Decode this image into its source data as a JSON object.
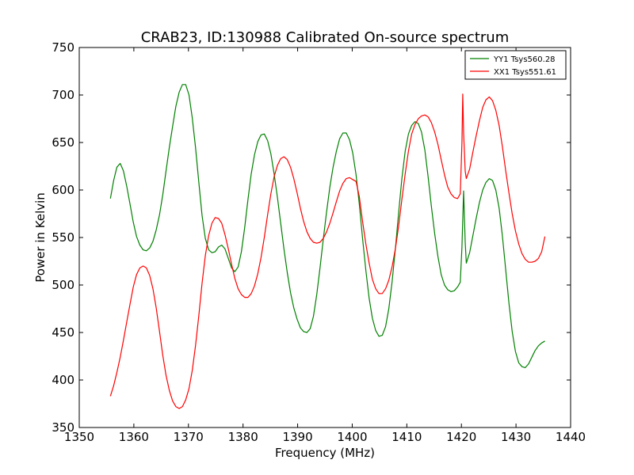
{
  "chart_data": {
    "type": "line",
    "title": "CRAB23, ID:130988 Calibrated On-source spectrum",
    "xlabel": "Frequency (MHz)",
    "ylabel": "Power in Kelvin",
    "xlim": [
      1350,
      1440
    ],
    "ylim": [
      350,
      750
    ],
    "xticks": [
      "1350",
      "1360",
      "1370",
      "1380",
      "1390",
      "1400",
      "1410",
      "1420",
      "1430",
      "1440"
    ],
    "yticks": [
      "350",
      "400",
      "450",
      "500",
      "550",
      "600",
      "650",
      "700",
      "750"
    ],
    "grid": false,
    "legend_position": "top-right",
    "series": [
      {
        "name": "YY1 Tsys560.28",
        "color": "#008000",
        "points": [
          [
            1355.7,
            591
          ],
          [
            1356.3,
            610
          ],
          [
            1356.9,
            624
          ],
          [
            1357.5,
            628
          ],
          [
            1358.1,
            620
          ],
          [
            1358.7,
            604
          ],
          [
            1359.3,
            585
          ],
          [
            1359.9,
            566
          ],
          [
            1360.5,
            551
          ],
          [
            1361.1,
            542
          ],
          [
            1361.7,
            537
          ],
          [
            1362.3,
            536
          ],
          [
            1362.9,
            539
          ],
          [
            1363.5,
            546
          ],
          [
            1364.1,
            558
          ],
          [
            1364.7,
            574
          ],
          [
            1365.3,
            595
          ],
          [
            1365.9,
            620
          ],
          [
            1366.5,
            645
          ],
          [
            1367.1,
            667
          ],
          [
            1367.7,
            688
          ],
          [
            1368.3,
            703
          ],
          [
            1368.9,
            711
          ],
          [
            1369.5,
            711
          ],
          [
            1370.1,
            700
          ],
          [
            1370.7,
            676
          ],
          [
            1371.3,
            645
          ],
          [
            1371.9,
            608
          ],
          [
            1372.5,
            573
          ],
          [
            1373.1,
            549
          ],
          [
            1373.7,
            537
          ],
          [
            1374.3,
            534
          ],
          [
            1374.9,
            535
          ],
          [
            1375.5,
            540
          ],
          [
            1376.1,
            542
          ],
          [
            1376.7,
            538
          ],
          [
            1377.3,
            528
          ],
          [
            1377.9,
            518
          ],
          [
            1378.5,
            514
          ],
          [
            1379.1,
            519
          ],
          [
            1379.7,
            535
          ],
          [
            1380.3,
            560
          ],
          [
            1380.9,
            590
          ],
          [
            1381.5,
            617
          ],
          [
            1382.1,
            637
          ],
          [
            1382.7,
            651
          ],
          [
            1383.3,
            658
          ],
          [
            1383.9,
            659
          ],
          [
            1384.5,
            652
          ],
          [
            1385.1,
            638
          ],
          [
            1385.7,
            617
          ],
          [
            1386.3,
            592
          ],
          [
            1386.9,
            565
          ],
          [
            1387.5,
            538
          ],
          [
            1388.1,
            513
          ],
          [
            1388.7,
            492
          ],
          [
            1389.3,
            476
          ],
          [
            1389.9,
            464
          ],
          [
            1390.5,
            455
          ],
          [
            1391.1,
            451
          ],
          [
            1391.7,
            450
          ],
          [
            1392.3,
            454
          ],
          [
            1392.9,
            467
          ],
          [
            1393.5,
            490
          ],
          [
            1394.1,
            518
          ],
          [
            1394.7,
            548
          ],
          [
            1395.3,
            577
          ],
          [
            1395.9,
            603
          ],
          [
            1396.5,
            624
          ],
          [
            1397.1,
            641
          ],
          [
            1397.7,
            654
          ],
          [
            1398.3,
            660
          ],
          [
            1398.9,
            660
          ],
          [
            1399.5,
            653
          ],
          [
            1400.1,
            639
          ],
          [
            1400.7,
            616
          ],
          [
            1401.3,
            585
          ],
          [
            1401.9,
            549
          ],
          [
            1402.5,
            515
          ],
          [
            1403.1,
            486
          ],
          [
            1403.7,
            465
          ],
          [
            1404.3,
            452
          ],
          [
            1404.9,
            446
          ],
          [
            1405.5,
            447
          ],
          [
            1406.1,
            456
          ],
          [
            1406.7,
            475
          ],
          [
            1407.3,
            503
          ],
          [
            1407.9,
            538
          ],
          [
            1408.5,
            576
          ],
          [
            1409.1,
            612
          ],
          [
            1409.7,
            641
          ],
          [
            1410.3,
            659
          ],
          [
            1410.9,
            668
          ],
          [
            1411.5,
            672
          ],
          [
            1412.1,
            670
          ],
          [
            1412.7,
            661
          ],
          [
            1413.3,
            642
          ],
          [
            1413.9,
            614
          ],
          [
            1414.5,
            583
          ],
          [
            1415.1,
            554
          ],
          [
            1415.7,
            530
          ],
          [
            1416.3,
            511
          ],
          [
            1416.9,
            500
          ],
          [
            1417.5,
            495
          ],
          [
            1418.1,
            493
          ],
          [
            1418.7,
            494
          ],
          [
            1419.3,
            498
          ],
          [
            1419.8,
            503
          ],
          [
            1420.1,
            540
          ],
          [
            1420.4,
            599
          ],
          [
            1420.7,
            545
          ],
          [
            1420.9,
            523
          ],
          [
            1421.5,
            534
          ],
          [
            1422.1,
            552
          ],
          [
            1422.7,
            570
          ],
          [
            1423.3,
            587
          ],
          [
            1423.9,
            600
          ],
          [
            1424.5,
            608
          ],
          [
            1425.1,
            612
          ],
          [
            1425.7,
            610
          ],
          [
            1426.3,
            600
          ],
          [
            1426.9,
            581
          ],
          [
            1427.5,
            552
          ],
          [
            1428.1,
            517
          ],
          [
            1428.7,
            481
          ],
          [
            1429.3,
            451
          ],
          [
            1429.9,
            430
          ],
          [
            1430.5,
            418
          ],
          [
            1431.1,
            414
          ],
          [
            1431.7,
            413
          ],
          [
            1432.3,
            417
          ],
          [
            1432.9,
            424
          ],
          [
            1433.5,
            431
          ],
          [
            1434.1,
            436
          ],
          [
            1434.7,
            439
          ],
          [
            1435.3,
            441
          ]
        ]
      },
      {
        "name": "XX1 Tsys551.61",
        "color": "#ff0000",
        "points": [
          [
            1355.7,
            383
          ],
          [
            1356.3,
            394
          ],
          [
            1356.9,
            408
          ],
          [
            1357.5,
            424
          ],
          [
            1358.1,
            442
          ],
          [
            1358.7,
            461
          ],
          [
            1359.3,
            480
          ],
          [
            1359.9,
            498
          ],
          [
            1360.5,
            511
          ],
          [
            1361.1,
            518
          ],
          [
            1361.7,
            520
          ],
          [
            1362.3,
            518
          ],
          [
            1362.9,
            510
          ],
          [
            1363.5,
            496
          ],
          [
            1364.1,
            476
          ],
          [
            1364.7,
            451
          ],
          [
            1365.3,
            426
          ],
          [
            1365.9,
            405
          ],
          [
            1366.5,
            389
          ],
          [
            1367.1,
            378
          ],
          [
            1367.7,
            372
          ],
          [
            1368.3,
            370
          ],
          [
            1368.9,
            372
          ],
          [
            1369.5,
            379
          ],
          [
            1370.1,
            391
          ],
          [
            1370.7,
            410
          ],
          [
            1371.3,
            436
          ],
          [
            1371.9,
            468
          ],
          [
            1372.5,
            502
          ],
          [
            1373.1,
            531
          ],
          [
            1373.7,
            552
          ],
          [
            1374.3,
            565
          ],
          [
            1374.9,
            571
          ],
          [
            1375.5,
            570
          ],
          [
            1376.1,
            565
          ],
          [
            1376.7,
            553
          ],
          [
            1377.3,
            538
          ],
          [
            1377.9,
            522
          ],
          [
            1378.5,
            507
          ],
          [
            1379.1,
            496
          ],
          [
            1379.7,
            490
          ],
          [
            1380.3,
            487
          ],
          [
            1380.9,
            487
          ],
          [
            1381.5,
            491
          ],
          [
            1382.1,
            499
          ],
          [
            1382.7,
            512
          ],
          [
            1383.3,
            529
          ],
          [
            1383.9,
            550
          ],
          [
            1384.5,
            574
          ],
          [
            1385.1,
            596
          ],
          [
            1385.7,
            614
          ],
          [
            1386.3,
            626
          ],
          [
            1386.9,
            633
          ],
          [
            1387.5,
            635
          ],
          [
            1388.1,
            632
          ],
          [
            1388.7,
            624
          ],
          [
            1389.3,
            612
          ],
          [
            1389.9,
            597
          ],
          [
            1390.5,
            581
          ],
          [
            1391.1,
            567
          ],
          [
            1391.7,
            556
          ],
          [
            1392.3,
            549
          ],
          [
            1392.9,
            545
          ],
          [
            1393.5,
            544
          ],
          [
            1394.1,
            545
          ],
          [
            1394.7,
            549
          ],
          [
            1395.3,
            556
          ],
          [
            1395.9,
            565
          ],
          [
            1396.5,
            576
          ],
          [
            1397.1,
            588
          ],
          [
            1397.7,
            599
          ],
          [
            1398.3,
            607
          ],
          [
            1398.9,
            612
          ],
          [
            1399.5,
            613
          ],
          [
            1400.1,
            611
          ],
          [
            1400.7,
            609
          ],
          [
            1401.3,
            593
          ],
          [
            1401.9,
            567
          ],
          [
            1402.5,
            543
          ],
          [
            1403.1,
            523
          ],
          [
            1403.7,
            506
          ],
          [
            1404.3,
            496
          ],
          [
            1404.9,
            491
          ],
          [
            1405.5,
            491
          ],
          [
            1406.1,
            496
          ],
          [
            1406.7,
            505
          ],
          [
            1407.3,
            519
          ],
          [
            1407.9,
            538
          ],
          [
            1408.5,
            562
          ],
          [
            1409.1,
            590
          ],
          [
            1409.7,
            617
          ],
          [
            1410.3,
            641
          ],
          [
            1410.9,
            659
          ],
          [
            1411.5,
            669
          ],
          [
            1412.1,
            675
          ],
          [
            1412.7,
            678
          ],
          [
            1413.3,
            679
          ],
          [
            1413.9,
            677
          ],
          [
            1414.5,
            671
          ],
          [
            1415.1,
            661
          ],
          [
            1415.7,
            648
          ],
          [
            1416.3,
            632
          ],
          [
            1416.9,
            616
          ],
          [
            1417.5,
            603
          ],
          [
            1418.1,
            596
          ],
          [
            1418.7,
            592
          ],
          [
            1419.3,
            591
          ],
          [
            1419.8,
            596
          ],
          [
            1420.1,
            650
          ],
          [
            1420.25,
            701
          ],
          [
            1420.4,
            660
          ],
          [
            1420.7,
            620
          ],
          [
            1420.9,
            612
          ],
          [
            1421.5,
            622
          ],
          [
            1422.1,
            640
          ],
          [
            1422.7,
            657
          ],
          [
            1423.3,
            673
          ],
          [
            1423.9,
            687
          ],
          [
            1424.5,
            695
          ],
          [
            1425.1,
            698
          ],
          [
            1425.7,
            694
          ],
          [
            1426.3,
            684
          ],
          [
            1426.9,
            668
          ],
          [
            1427.5,
            646
          ],
          [
            1428.1,
            621
          ],
          [
            1428.7,
            597
          ],
          [
            1429.3,
            575
          ],
          [
            1429.9,
            557
          ],
          [
            1430.5,
            543
          ],
          [
            1431.1,
            533
          ],
          [
            1431.7,
            527
          ],
          [
            1432.3,
            524
          ],
          [
            1432.9,
            524
          ],
          [
            1433.5,
            525
          ],
          [
            1434.1,
            528
          ],
          [
            1434.7,
            535
          ],
          [
            1435.3,
            551
          ]
        ]
      }
    ]
  }
}
